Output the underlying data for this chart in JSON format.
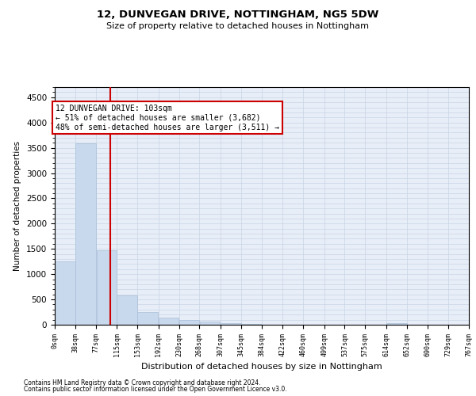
{
  "title": "12, DUNVEGAN DRIVE, NOTTINGHAM, NG5 5DW",
  "subtitle": "Size of property relative to detached houses in Nottingham",
  "xlabel": "Distribution of detached houses by size in Nottingham",
  "ylabel": "Number of detached properties",
  "bar_color": "#c9d9ed",
  "bar_edge_color": "#a8bfd8",
  "grid_color": "#c8d4e4",
  "background_color": "#e8eef8",
  "vline_x": 103,
  "vline_color": "#cc0000",
  "annotation_title": "12 DUNVEGAN DRIVE: 103sqm",
  "annotation_line1": "← 51% of detached houses are smaller (3,682)",
  "annotation_line2": "48% of semi-detached houses are larger (3,511) →",
  "annotation_box_color": "#cc0000",
  "bin_edges": [
    0,
    38,
    77,
    115,
    153,
    192,
    230,
    268,
    307,
    345,
    384,
    422,
    460,
    499,
    537,
    575,
    614,
    652,
    690,
    729,
    767
  ],
  "bin_labels": [
    "0sqm",
    "38sqm",
    "77sqm",
    "115sqm",
    "153sqm",
    "192sqm",
    "230sqm",
    "268sqm",
    "307sqm",
    "345sqm",
    "384sqm",
    "422sqm",
    "460sqm",
    "499sqm",
    "537sqm",
    "575sqm",
    "614sqm",
    "652sqm",
    "690sqm",
    "729sqm",
    "767sqm"
  ],
  "bar_heights": [
    1250,
    3580,
    1480,
    580,
    250,
    140,
    100,
    60,
    30,
    10,
    5,
    0,
    0,
    0,
    0,
    0,
    25,
    0,
    0,
    0
  ],
  "ylim": [
    0,
    4700
  ],
  "yticks": [
    0,
    500,
    1000,
    1500,
    2000,
    2500,
    3000,
    3500,
    4000,
    4500
  ],
  "footnote1": "Contains HM Land Registry data © Crown copyright and database right 2024.",
  "footnote2": "Contains public sector information licensed under the Open Government Licence v3.0."
}
